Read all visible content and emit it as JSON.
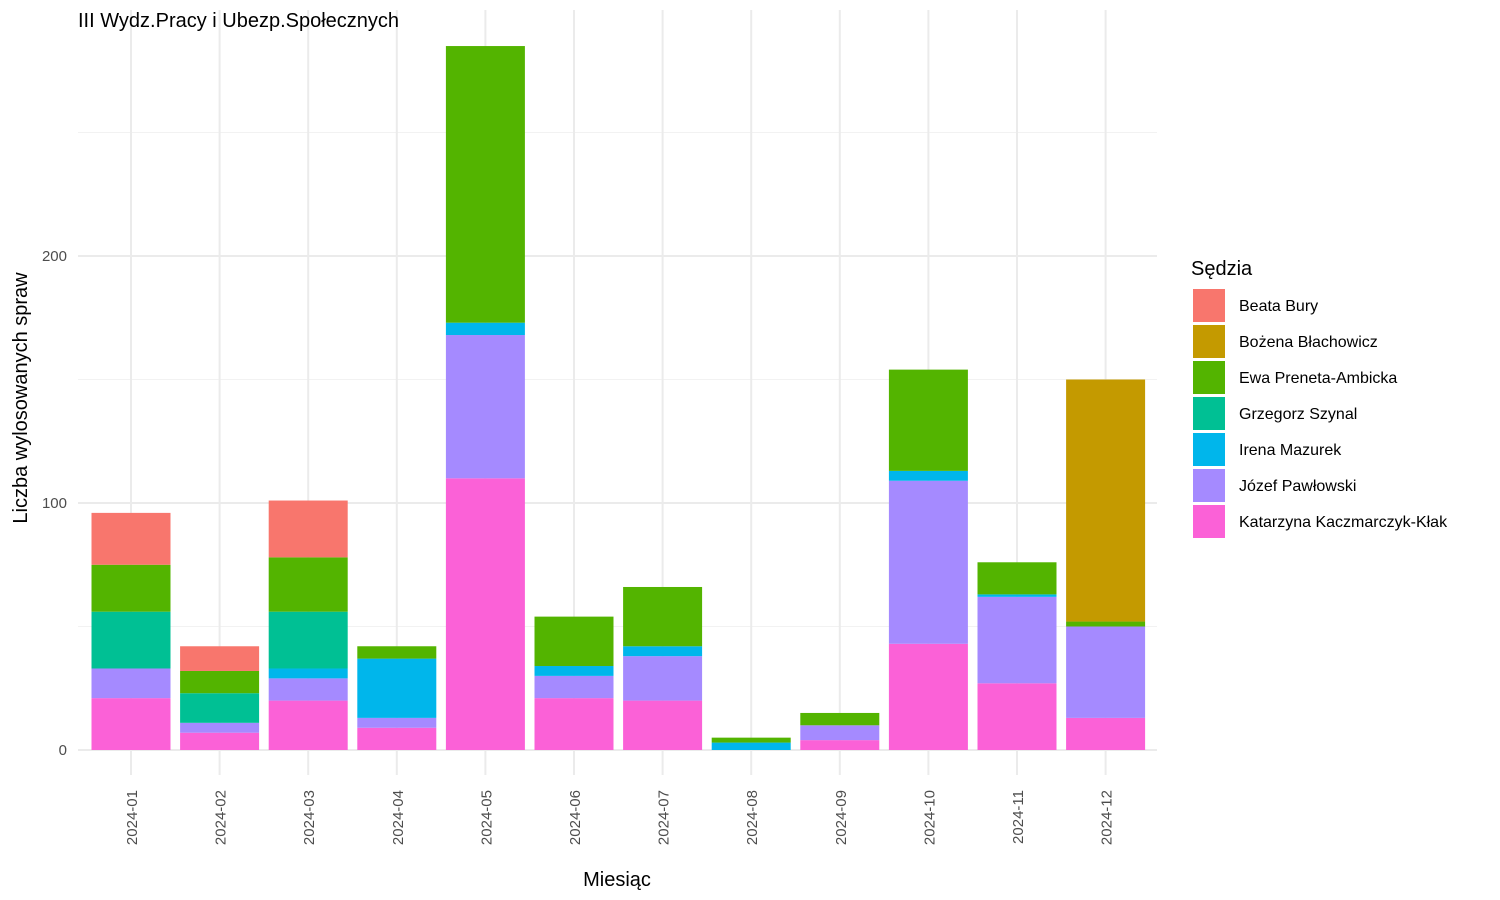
{
  "chart_data": {
    "type": "bar",
    "stacked": true,
    "title": "III Wydz.Pracy i Ubezp.Społecznych",
    "xlabel": "Miesiąc",
    "ylabel": "Liczba wylosowanych spraw",
    "ylim": [
      0,
      285
    ],
    "yticks": [
      0,
      100,
      200
    ],
    "grid": true,
    "legend": {
      "title": "Sędzia",
      "position": "right"
    },
    "categories": [
      "2024-01",
      "2024-02",
      "2024-03",
      "2024-04",
      "2024-05",
      "2024-06",
      "2024-07",
      "2024-08",
      "2024-09",
      "2024-10",
      "2024-11",
      "2024-12"
    ],
    "series": [
      {
        "name": "Beata Bury",
        "color": "#F8766D",
        "values": [
          21,
          10,
          23,
          0,
          0,
          0,
          0,
          0,
          0,
          0,
          0,
          0
        ]
      },
      {
        "name": "Bożena Błachowicz",
        "color": "#C49A00",
        "values": [
          0,
          0,
          0,
          0,
          0,
          0,
          0,
          0,
          0,
          0,
          0,
          98
        ]
      },
      {
        "name": "Ewa Preneta-Ambicka",
        "color": "#53B400",
        "values": [
          19,
          9,
          22,
          5,
          112,
          20,
          24,
          2,
          5,
          41,
          13,
          2
        ]
      },
      {
        "name": "Grzegorz Szynal",
        "color": "#00C094",
        "values": [
          23,
          12,
          23,
          0,
          0,
          0,
          0,
          0,
          0,
          0,
          0,
          0
        ]
      },
      {
        "name": "Irena Mazurek",
        "color": "#00B6EB",
        "values": [
          0,
          0,
          4,
          24,
          5,
          4,
          4,
          3,
          0,
          4,
          1,
          0
        ]
      },
      {
        "name": "Józef Pawłowski",
        "color": "#A58AFF",
        "values": [
          12,
          4,
          9,
          4,
          58,
          9,
          18,
          0,
          6,
          66,
          35,
          37
        ]
      },
      {
        "name": "Katarzyna Kaczmarczyk-Kłak",
        "color": "#FB61D7",
        "values": [
          21,
          7,
          20,
          9,
          110,
          21,
          20,
          0,
          4,
          43,
          27,
          13
        ]
      }
    ]
  }
}
